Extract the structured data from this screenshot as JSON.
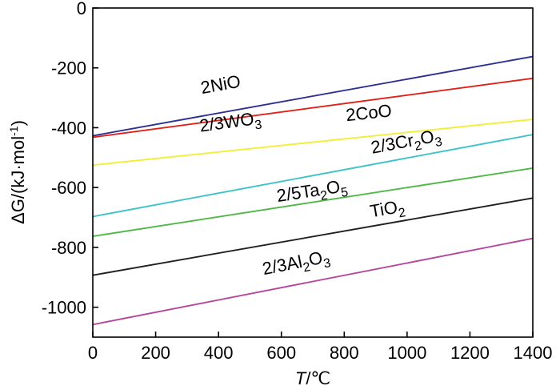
{
  "chart_data": {
    "type": "line",
    "title": "",
    "xlabel": "T/℃",
    "xlabel_var": "T",
    "xlabel_unit": "/℃",
    "ylabel": "ΔG/(kJ·mol-1)",
    "ylabel_prefix": "ΔG/(kJ·mol",
    "ylabel_sup": "-1",
    "ylabel_suffix": ")",
    "xlim": [
      0,
      1400
    ],
    "ylim": [
      -1100,
      0
    ],
    "xticks": [
      0,
      200,
      400,
      600,
      800,
      1000,
      1200,
      1400
    ],
    "yticks": [
      0,
      -200,
      -400,
      -600,
      -800,
      -1000
    ],
    "grid": false,
    "series": [
      {
        "name": "2NiO",
        "color": "#2e3192",
        "x": [
          0,
          1400
        ],
        "values": [
          -427,
          -162
        ],
        "label_parts": [
          {
            "t": "2NiO"
          }
        ],
        "label_x": 410,
        "label_y": -275
      },
      {
        "name": "2/3WO3",
        "color": "#e0211a",
        "x": [
          0,
          1400
        ],
        "values": [
          -432,
          -235
        ],
        "label_parts": [
          {
            "t": "2/3WO"
          },
          {
            "t": "3",
            "sub": true
          }
        ],
        "label_x": 440,
        "label_y": -400
      },
      {
        "name": "2CoO",
        "color": "#f2ee3a",
        "x": [
          0,
          1400
        ],
        "values": [
          -525,
          -372
        ],
        "label_parts": [
          {
            "t": "2CoO"
          }
        ],
        "label_x": 880,
        "label_y": -370
      },
      {
        "name": "2/3Cr2O3",
        "color": "#3fc3c8",
        "x": [
          0,
          1400
        ],
        "values": [
          -697,
          -423
        ],
        "label_parts": [
          {
            "t": "2/3Cr"
          },
          {
            "t": "2",
            "sub": true
          },
          {
            "t": "O"
          },
          {
            "t": "3",
            "sub": true
          }
        ],
        "label_x": 1000,
        "label_y": -465
      },
      {
        "name": "2/5Ta2O5",
        "color": "#50b848",
        "x": [
          0,
          1400
        ],
        "values": [
          -763,
          -535
        ],
        "label_parts": [
          {
            "t": "2/5Ta"
          },
          {
            "t": "2",
            "sub": true
          },
          {
            "t": "O"
          },
          {
            "t": "5",
            "sub": true
          }
        ],
        "label_x": 700,
        "label_y": -630
      },
      {
        "name": "TiO2",
        "color": "#231f20",
        "x": [
          0,
          1400
        ],
        "values": [
          -893,
          -635
        ],
        "label_parts": [
          {
            "t": "TiO"
          },
          {
            "t": "2",
            "sub": true
          }
        ],
        "label_x": 940,
        "label_y": -690
      },
      {
        "name": "2/3Al2O3",
        "color": "#b5489b",
        "x": [
          0,
          1400
        ],
        "values": [
          -1058,
          -770
        ],
        "label_parts": [
          {
            "t": "2/3Al"
          },
          {
            "t": "2",
            "sub": true
          },
          {
            "t": "O"
          },
          {
            "t": "3",
            "sub": true
          }
        ],
        "label_x": 650,
        "label_y": -870
      }
    ]
  }
}
